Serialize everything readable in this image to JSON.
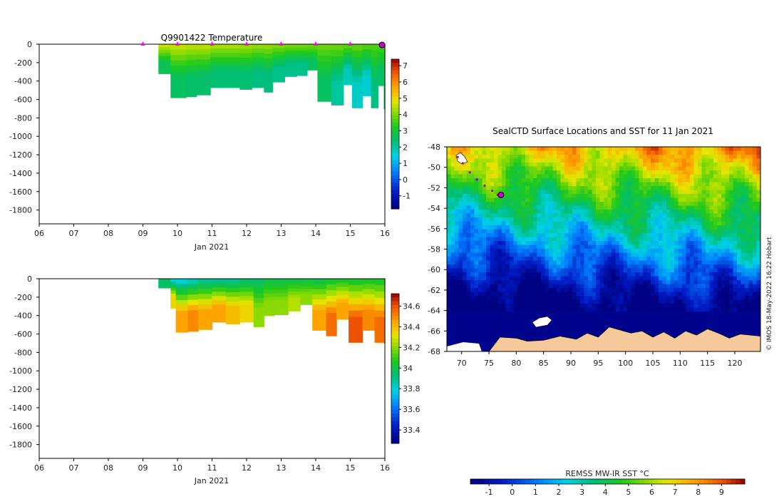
{
  "chart_data": [
    {
      "type": "heatmap",
      "id": "temperature",
      "title": "Q9901422  Temperature",
      "xlabel": "Jan 2021",
      "x_ticks": [
        "06",
        "07",
        "08",
        "09",
        "10",
        "11",
        "12",
        "13",
        "14",
        "15",
        "16"
      ],
      "xlim": [
        6,
        16
      ],
      "y_ticks": [
        0,
        -200,
        -400,
        -600,
        -800,
        -1000,
        -1200,
        -1400,
        -1600,
        -1800
      ],
      "ylim": [
        -1950,
        0
      ],
      "colorbar": {
        "ticks": [
          -1,
          0,
          1,
          2,
          3,
          4,
          5,
          6,
          7
        ],
        "range": [
          -1.8,
          7.4
        ]
      },
      "profile_markers_day": [
        9,
        10,
        11,
        12,
        13,
        14,
        15
      ],
      "profiles": [
        {
          "day": 9.45,
          "depth": 320,
          "surface": 4.6,
          "deep": 2.7
        },
        {
          "day": 9.8,
          "depth": 580,
          "surface": 4.5,
          "deep": 2.6
        },
        {
          "day": 10.25,
          "depth": 570,
          "surface": 4.4,
          "deep": 2.5
        },
        {
          "day": 10.55,
          "depth": 550,
          "surface": 4.4,
          "deep": 2.5
        },
        {
          "day": 10.95,
          "depth": 470,
          "surface": 4.3,
          "deep": 2.4
        },
        {
          "day": 11.35,
          "depth": 470,
          "surface": 4.3,
          "deep": 2.4
        },
        {
          "day": 11.8,
          "depth": 490,
          "surface": 4.2,
          "deep": 2.4
        },
        {
          "day": 12.15,
          "depth": 470,
          "surface": 4.1,
          "deep": 2.3
        },
        {
          "day": 12.5,
          "depth": 520,
          "surface": 4.1,
          "deep": 2.3
        },
        {
          "day": 12.75,
          "depth": 410,
          "surface": 4.0,
          "deep": 2.2
        },
        {
          "day": 13.1,
          "depth": 350,
          "surface": 3.9,
          "deep": 2.2
        },
        {
          "day": 13.45,
          "depth": 340,
          "surface": 3.9,
          "deep": 2.2
        },
        {
          "day": 13.75,
          "depth": 280,
          "surface": 3.9,
          "deep": 2.6
        },
        {
          "day": 14.05,
          "depth": 620,
          "surface": 3.8,
          "deep": 2.6
        },
        {
          "day": 14.45,
          "depth": 660,
          "surface": 3.8,
          "deep": 2.0
        },
        {
          "day": 14.8,
          "depth": 440,
          "surface": 3.7,
          "deep": 1.8
        },
        {
          "day": 15.05,
          "depth": 690,
          "surface": 3.7,
          "deep": 1.7
        },
        {
          "day": 15.35,
          "depth": 560,
          "surface": 3.6,
          "deep": 1.6
        },
        {
          "day": 15.6,
          "depth": 690,
          "surface": 3.6,
          "deep": 2.3
        },
        {
          "day": 15.8,
          "depth": 450,
          "surface": 3.6,
          "deep": 2.5
        },
        {
          "day": 15.97,
          "depth": 700,
          "surface": 3.5,
          "deep": 2.6
        }
      ]
    },
    {
      "type": "heatmap",
      "id": "salinity",
      "title": "",
      "xlabel": "Jan 2021",
      "x_ticks": [
        "06",
        "07",
        "08",
        "09",
        "10",
        "11",
        "12",
        "13",
        "14",
        "15",
        "16"
      ],
      "xlim": [
        6,
        16
      ],
      "y_ticks": [
        0,
        -200,
        -400,
        -600,
        -800,
        -1000,
        -1200,
        -1400,
        -1600,
        -1800
      ],
      "ylim": [
        -1950,
        0
      ],
      "colorbar": {
        "ticks": [
          33.4,
          33.6,
          33.8,
          34,
          34.2,
          34.4,
          34.6
        ],
        "range": [
          33.27,
          34.72
        ]
      },
      "profiles": [
        {
          "day": 9.45,
          "depth": 100,
          "surface": 33.95,
          "deep": 33.95
        },
        {
          "day": 9.8,
          "depth": 320,
          "surface": 33.8,
          "deep": 34.35
        },
        {
          "day": 9.95,
          "depth": 580,
          "surface": 33.8,
          "deep": 34.45
        },
        {
          "day": 10.3,
          "depth": 570,
          "surface": 33.85,
          "deep": 34.5
        },
        {
          "day": 10.6,
          "depth": 550,
          "surface": 33.9,
          "deep": 34.45
        },
        {
          "day": 11.0,
          "depth": 470,
          "surface": 33.9,
          "deep": 34.45
        },
        {
          "day": 11.4,
          "depth": 490,
          "surface": 33.9,
          "deep": 34.4
        },
        {
          "day": 11.8,
          "depth": 470,
          "surface": 33.95,
          "deep": 34.35
        },
        {
          "day": 12.2,
          "depth": 520,
          "surface": 33.95,
          "deep": 34.2
        },
        {
          "day": 12.5,
          "depth": 400,
          "surface": 34.0,
          "deep": 34.2
        },
        {
          "day": 12.8,
          "depth": 390,
          "surface": 34.0,
          "deep": 34.2
        },
        {
          "day": 13.2,
          "depth": 350,
          "surface": 34.0,
          "deep": 34.25
        },
        {
          "day": 13.55,
          "depth": 280,
          "surface": 34.0,
          "deep": 34.2
        },
        {
          "day": 13.9,
          "depth": 560,
          "surface": 34.0,
          "deep": 34.45
        },
        {
          "day": 14.3,
          "depth": 620,
          "surface": 34.05,
          "deep": 34.55
        },
        {
          "day": 14.6,
          "depth": 440,
          "surface": 34.05,
          "deep": 34.45
        },
        {
          "day": 14.95,
          "depth": 690,
          "surface": 34.05,
          "deep": 34.6
        },
        {
          "day": 15.35,
          "depth": 560,
          "surface": 34.05,
          "deep": 34.5
        },
        {
          "day": 15.7,
          "depth": 690,
          "surface": 34.05,
          "deep": 34.55
        },
        {
          "day": 15.97,
          "depth": 700,
          "surface": 34.05,
          "deep": 34.55
        }
      ]
    },
    {
      "type": "heatmap",
      "id": "sst_map",
      "title": "SealCTD Surface Locations and SST for 11 Jan 2021",
      "x_ticks": [
        70,
        75,
        80,
        85,
        90,
        95,
        100,
        105,
        110,
        115,
        120
      ],
      "xlim": [
        67.3,
        124.7
      ],
      "y_ticks": [
        -48,
        -50,
        -52,
        -54,
        -56,
        -58,
        -60,
        -62,
        -64,
        -66,
        -68
      ],
      "ylim": [
        -68,
        -48
      ],
      "colorbar": {
        "label": "REMSS MW-IR SST °C",
        "ticks": [
          -1,
          0,
          1,
          2,
          3,
          4,
          5,
          6,
          7,
          8,
          9
        ],
        "range": [
          -1.8,
          10
        ]
      },
      "credit": "© IMOS 18-May-2022 16:22 Hobart",
      "track": [
        [
          69.3,
          -49.0
        ],
        [
          70.2,
          -49.6
        ],
        [
          71.5,
          -50.5
        ],
        [
          72.8,
          -51.2
        ],
        [
          74.2,
          -51.8
        ],
        [
          75.6,
          -52.3
        ],
        [
          76.6,
          -52.7
        ],
        [
          77.2,
          -52.7
        ]
      ],
      "track_end": [
        77.2,
        -52.7
      ],
      "colors": {
        "land": "#f5c99a",
        "marker": "#cc00cc",
        "track": "#b000b0"
      }
    }
  ]
}
